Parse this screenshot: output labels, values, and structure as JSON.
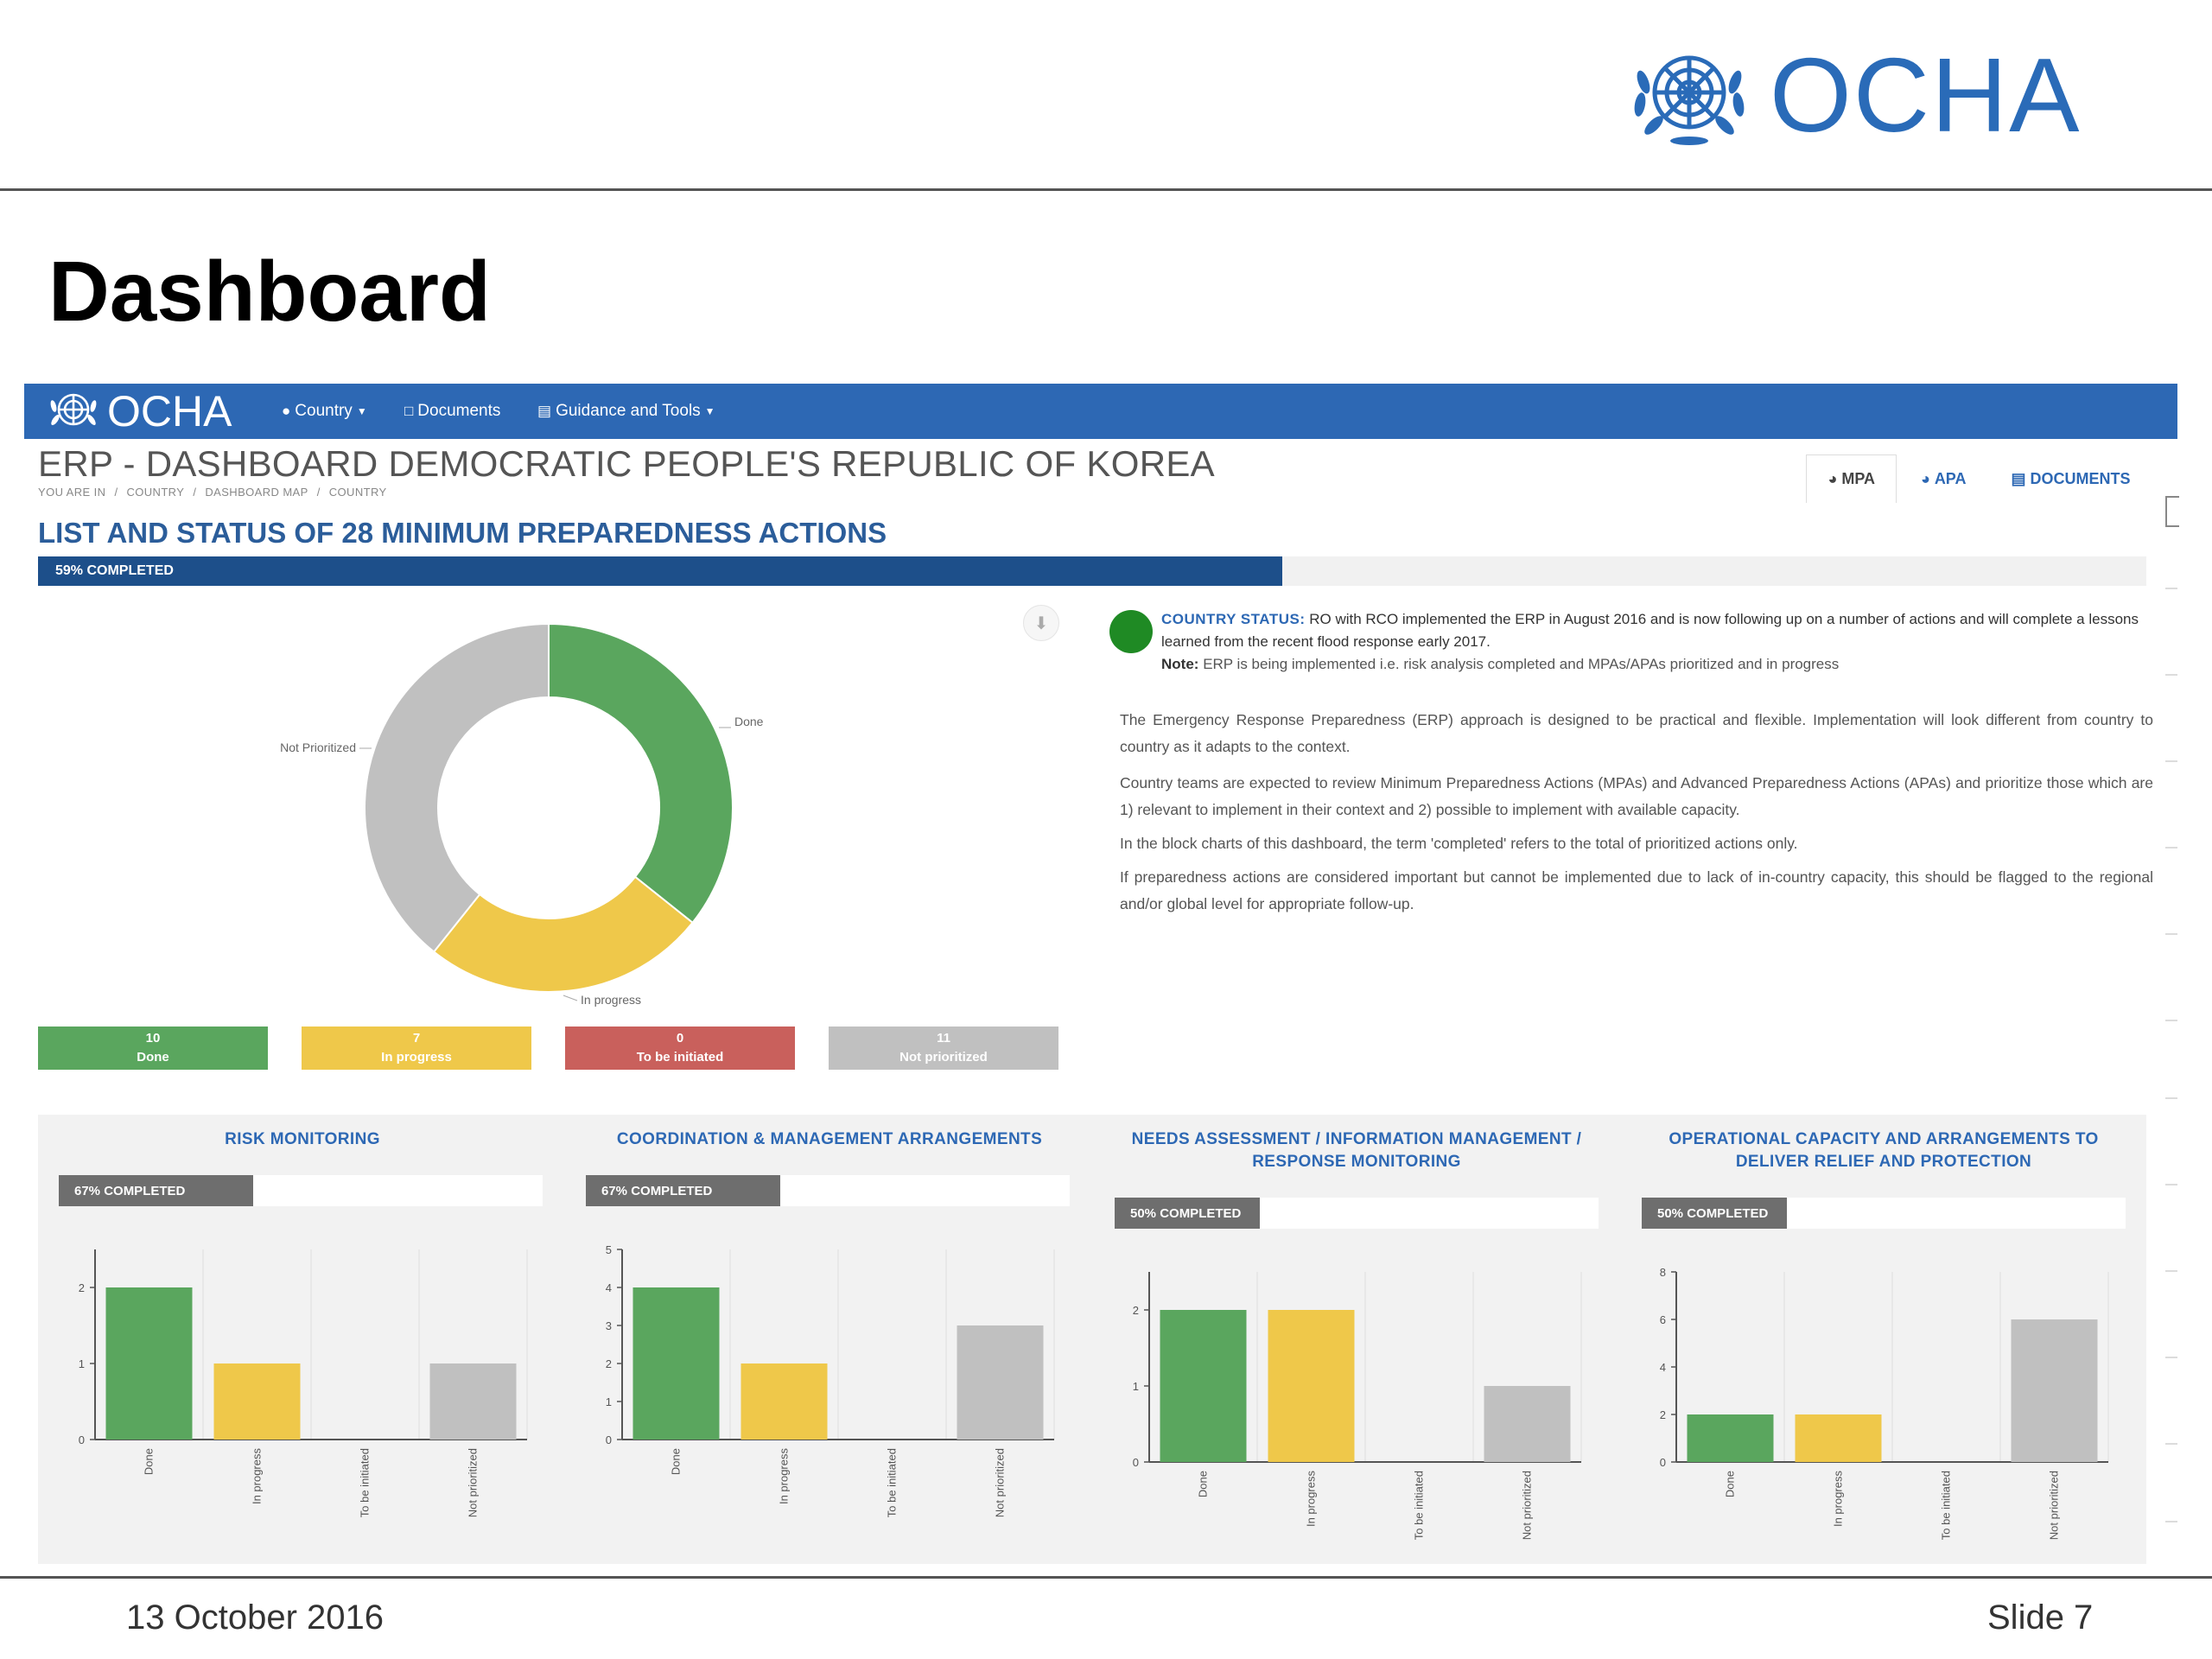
{
  "slide": {
    "logo_text": "OCHA",
    "title": "Dashboard",
    "footer_date": "13 October 2016",
    "footer_slide": "Slide 7"
  },
  "nav": {
    "logo_text": "OCHA",
    "items": [
      {
        "label": "Country",
        "icon": "globe-icon",
        "dropdown": true
      },
      {
        "label": "Documents",
        "icon": "document-icon",
        "dropdown": false
      },
      {
        "label": "Guidance and Tools",
        "icon": "list-icon",
        "dropdown": true
      }
    ]
  },
  "page": {
    "title": "ERP - DASHBOARD DEMOCRATIC PEOPLE'S REPUBLIC OF KOREA",
    "breadcrumb": [
      "YOU ARE IN",
      "/",
      "COUNTRY",
      "/",
      "DASHBOARD MAP",
      "/",
      "COUNTRY"
    ],
    "tabs": [
      {
        "label": "MPA",
        "icon": "pie-icon",
        "active": true
      },
      {
        "label": "APA",
        "icon": "pie-icon",
        "active": false
      },
      {
        "label": "DOCUMENTS",
        "icon": "document-icon",
        "active": false
      }
    ]
  },
  "mpa": {
    "heading": "LIST AND STATUS OF 28 MINIMUM PREPAREDNESS ACTIONS",
    "progress_label": "59% COMPLETED",
    "progress_fraction": 0.59
  },
  "colors": {
    "done": "#5aa65e",
    "in_progress": "#efc84a",
    "to_be_initiated": "#c9605c",
    "not_prioritized": "#c0c0c0",
    "nav": "#2d68b4",
    "link": "#2d68b4"
  },
  "donut": {
    "labels": {
      "done": "Done",
      "in_progress": "In progress",
      "not_prioritized": "Not Prioritized"
    }
  },
  "legend": [
    {
      "count": "10",
      "label": "Done",
      "key": "done"
    },
    {
      "count": "7",
      "label": "In progress",
      "key": "in_progress"
    },
    {
      "count": "0",
      "label": "To be initiated",
      "key": "to_be_initiated"
    },
    {
      "count": "11",
      "label": "Not prioritized",
      "key": "not_prioritized"
    }
  ],
  "status": {
    "label": "COUNTRY STATUS:",
    "text": "RO with RCO implemented the ERP in August 2016 and is now following up on a number of actions and will complete a lessons learned from the recent flood response early 2017.",
    "note_label": "Note:",
    "note_text": "ERP is being implemented i.e. risk analysis completed and MPAs/APAs prioritized and in progress"
  },
  "info": [
    "The Emergency Response Preparedness (ERP) approach is designed to be practical and flexible. Implementation will look different from country to country as it adapts to the context.",
    "Country teams are expected to review Minimum Preparedness Actions (MPAs) and Advanced Preparedness Actions (APAs) and prioritize those which are 1) relevant to implement in their context and 2) possible to implement with available capacity.",
    "In the block charts of this dashboard, the term 'completed' refers to the total of prioritized actions only.",
    "If preparedness actions are considered important but cannot be implemented due to lack of in-country capacity, this should be flagged to the regional and/or global level for appropriate follow-up."
  ],
  "chart_data": [
    {
      "type": "pie",
      "title": "",
      "categories": [
        "Done",
        "In progress",
        "To be initiated",
        "Not Prioritized"
      ],
      "values": [
        10,
        7,
        0,
        11
      ]
    },
    {
      "type": "bar",
      "title": "RISK MONITORING",
      "progress_label": "67% COMPLETED",
      "progress_fraction": 0.67,
      "categories": [
        "Done",
        "In progress",
        "To be initiated",
        "Not prioritized"
      ],
      "values": [
        2,
        1,
        0,
        1
      ],
      "yticks": [
        0,
        1,
        2
      ],
      "ylim": [
        0,
        2.5
      ]
    },
    {
      "type": "bar",
      "title": "COORDINATION & MANAGEMENT ARRANGEMENTS",
      "progress_label": "67% COMPLETED",
      "progress_fraction": 0.67,
      "categories": [
        "Done",
        "In progress",
        "To be initiated",
        "Not prioritized"
      ],
      "values": [
        4,
        2,
        0,
        3
      ],
      "yticks": [
        0,
        1,
        2,
        3,
        4,
        5
      ],
      "ylim": [
        0,
        5
      ]
    },
    {
      "type": "bar",
      "title": "NEEDS ASSESSMENT / INFORMATION MANAGEMENT / RESPONSE MONITORING",
      "progress_label": "50% COMPLETED",
      "progress_fraction": 0.5,
      "categories": [
        "Done",
        "In progress",
        "To be initiated",
        "Not prioritized"
      ],
      "values": [
        2,
        2,
        0,
        1
      ],
      "yticks": [
        0,
        1,
        2
      ],
      "ylim": [
        0,
        2.5
      ]
    },
    {
      "type": "bar",
      "title": "OPERATIONAL CAPACITY AND ARRANGEMENTS TO DELIVER RELIEF AND PROTECTION",
      "progress_label": "50% COMPLETED",
      "progress_fraction": 0.5,
      "categories": [
        "Done",
        "In progress",
        "To be initiated",
        "Not prioritized"
      ],
      "values": [
        2,
        2,
        0,
        6
      ],
      "yticks": [
        0,
        2,
        4,
        6,
        8
      ],
      "ylim": [
        0,
        8
      ]
    }
  ]
}
